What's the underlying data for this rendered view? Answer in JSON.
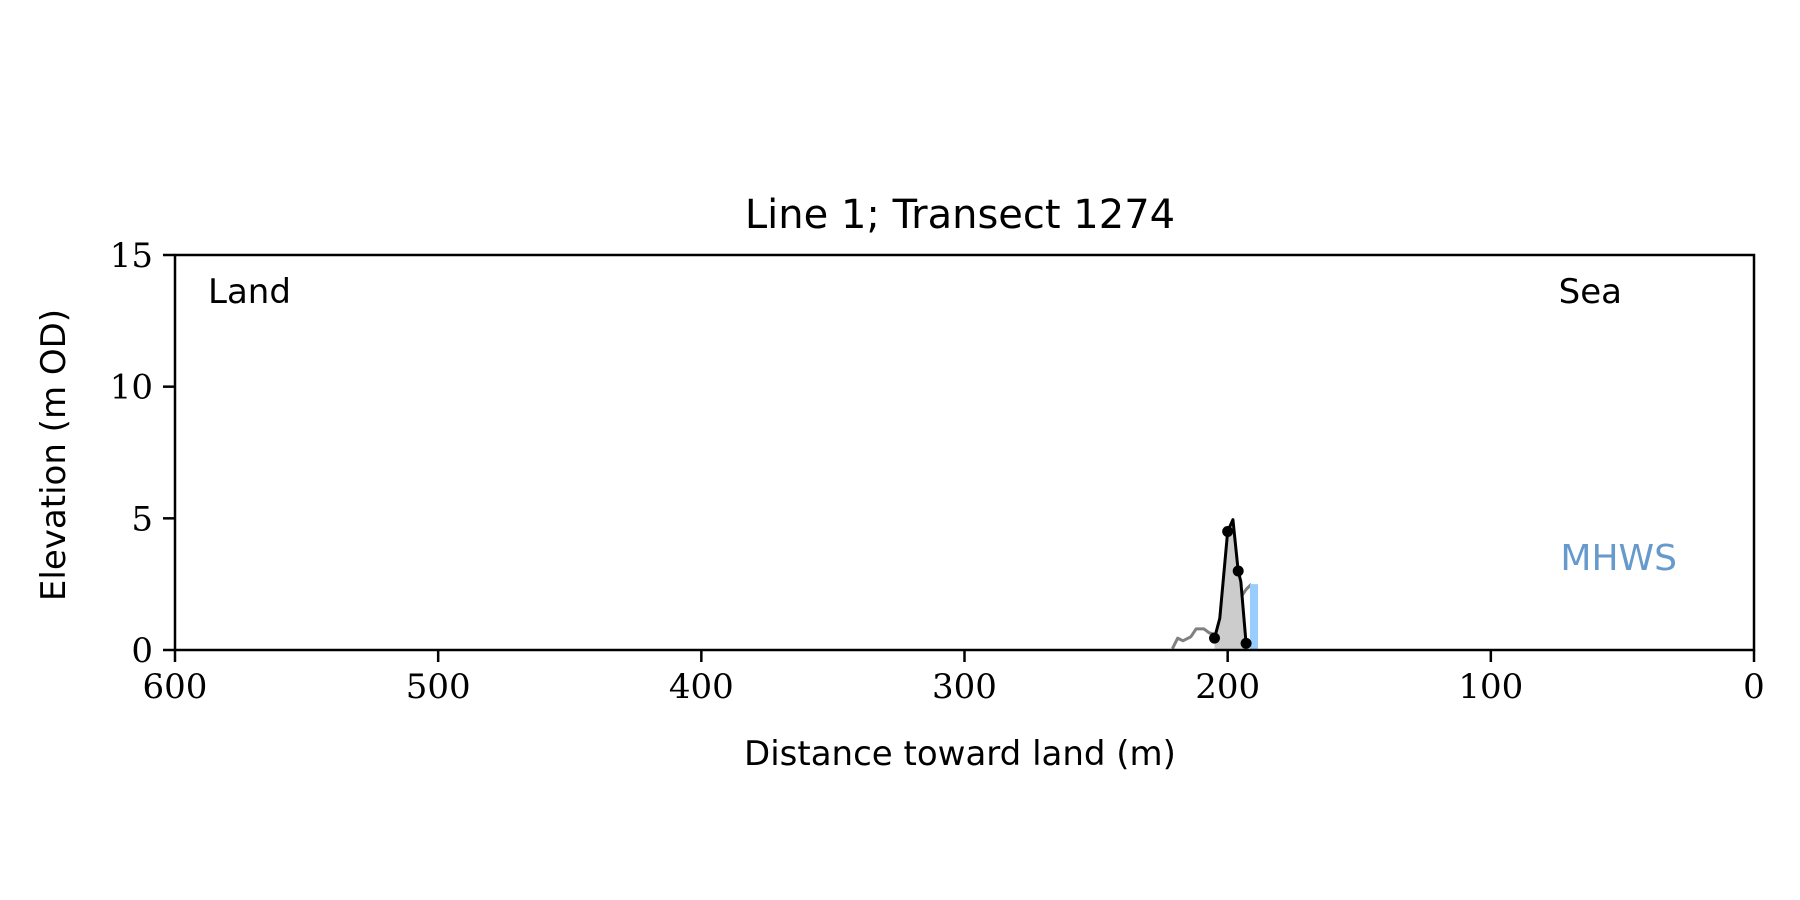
{
  "chart_data": {
    "type": "line",
    "title": "Line 1; Transect 1274",
    "xlabel": "Distance toward land (m)",
    "ylabel": "Elevation (m OD)",
    "xlim": [
      600,
      0
    ],
    "ylim": [
      0,
      15
    ],
    "x_ticks": [
      600,
      500,
      400,
      300,
      200,
      100,
      0
    ],
    "y_ticks": [
      0,
      5,
      10,
      15
    ],
    "grid": false,
    "annotations": {
      "land": "Land",
      "sea": "Sea",
      "mhws": "MHWS"
    },
    "mhws": {
      "x": 190,
      "elevation": 2.5,
      "color": "#99CCFF"
    },
    "series": [
      {
        "kind": "ground",
        "color": "#808080",
        "points": [
          [
            221,
            0.05
          ],
          [
            219,
            0.45
          ],
          [
            217,
            0.35
          ],
          [
            214,
            0.5
          ],
          [
            212,
            0.8
          ],
          [
            209,
            0.8
          ],
          [
            207,
            0.65
          ],
          [
            205,
            0.6
          ],
          [
            203,
            0.7
          ],
          [
            201,
            0.9
          ],
          [
            199,
            1.4
          ],
          [
            197,
            1.8
          ],
          [
            195,
            2.0
          ],
          [
            193,
            2.3
          ],
          [
            191,
            2.5
          ]
        ]
      },
      {
        "kind": "profile",
        "color": "#000000",
        "fill": "#CCCCCC",
        "points": [
          [
            205,
            0.45
          ],
          [
            203,
            1.2
          ],
          [
            200,
            4.5
          ],
          [
            198,
            4.95
          ],
          [
            196,
            3.0
          ],
          [
            195,
            2.6
          ],
          [
            193,
            0.25
          ]
        ]
      }
    ],
    "markers": [
      {
        "x": 205,
        "y": 0.45
      },
      {
        "x": 200,
        "y": 4.5
      },
      {
        "x": 196,
        "y": 3.0
      },
      {
        "x": 193,
        "y": 0.25
      }
    ]
  }
}
